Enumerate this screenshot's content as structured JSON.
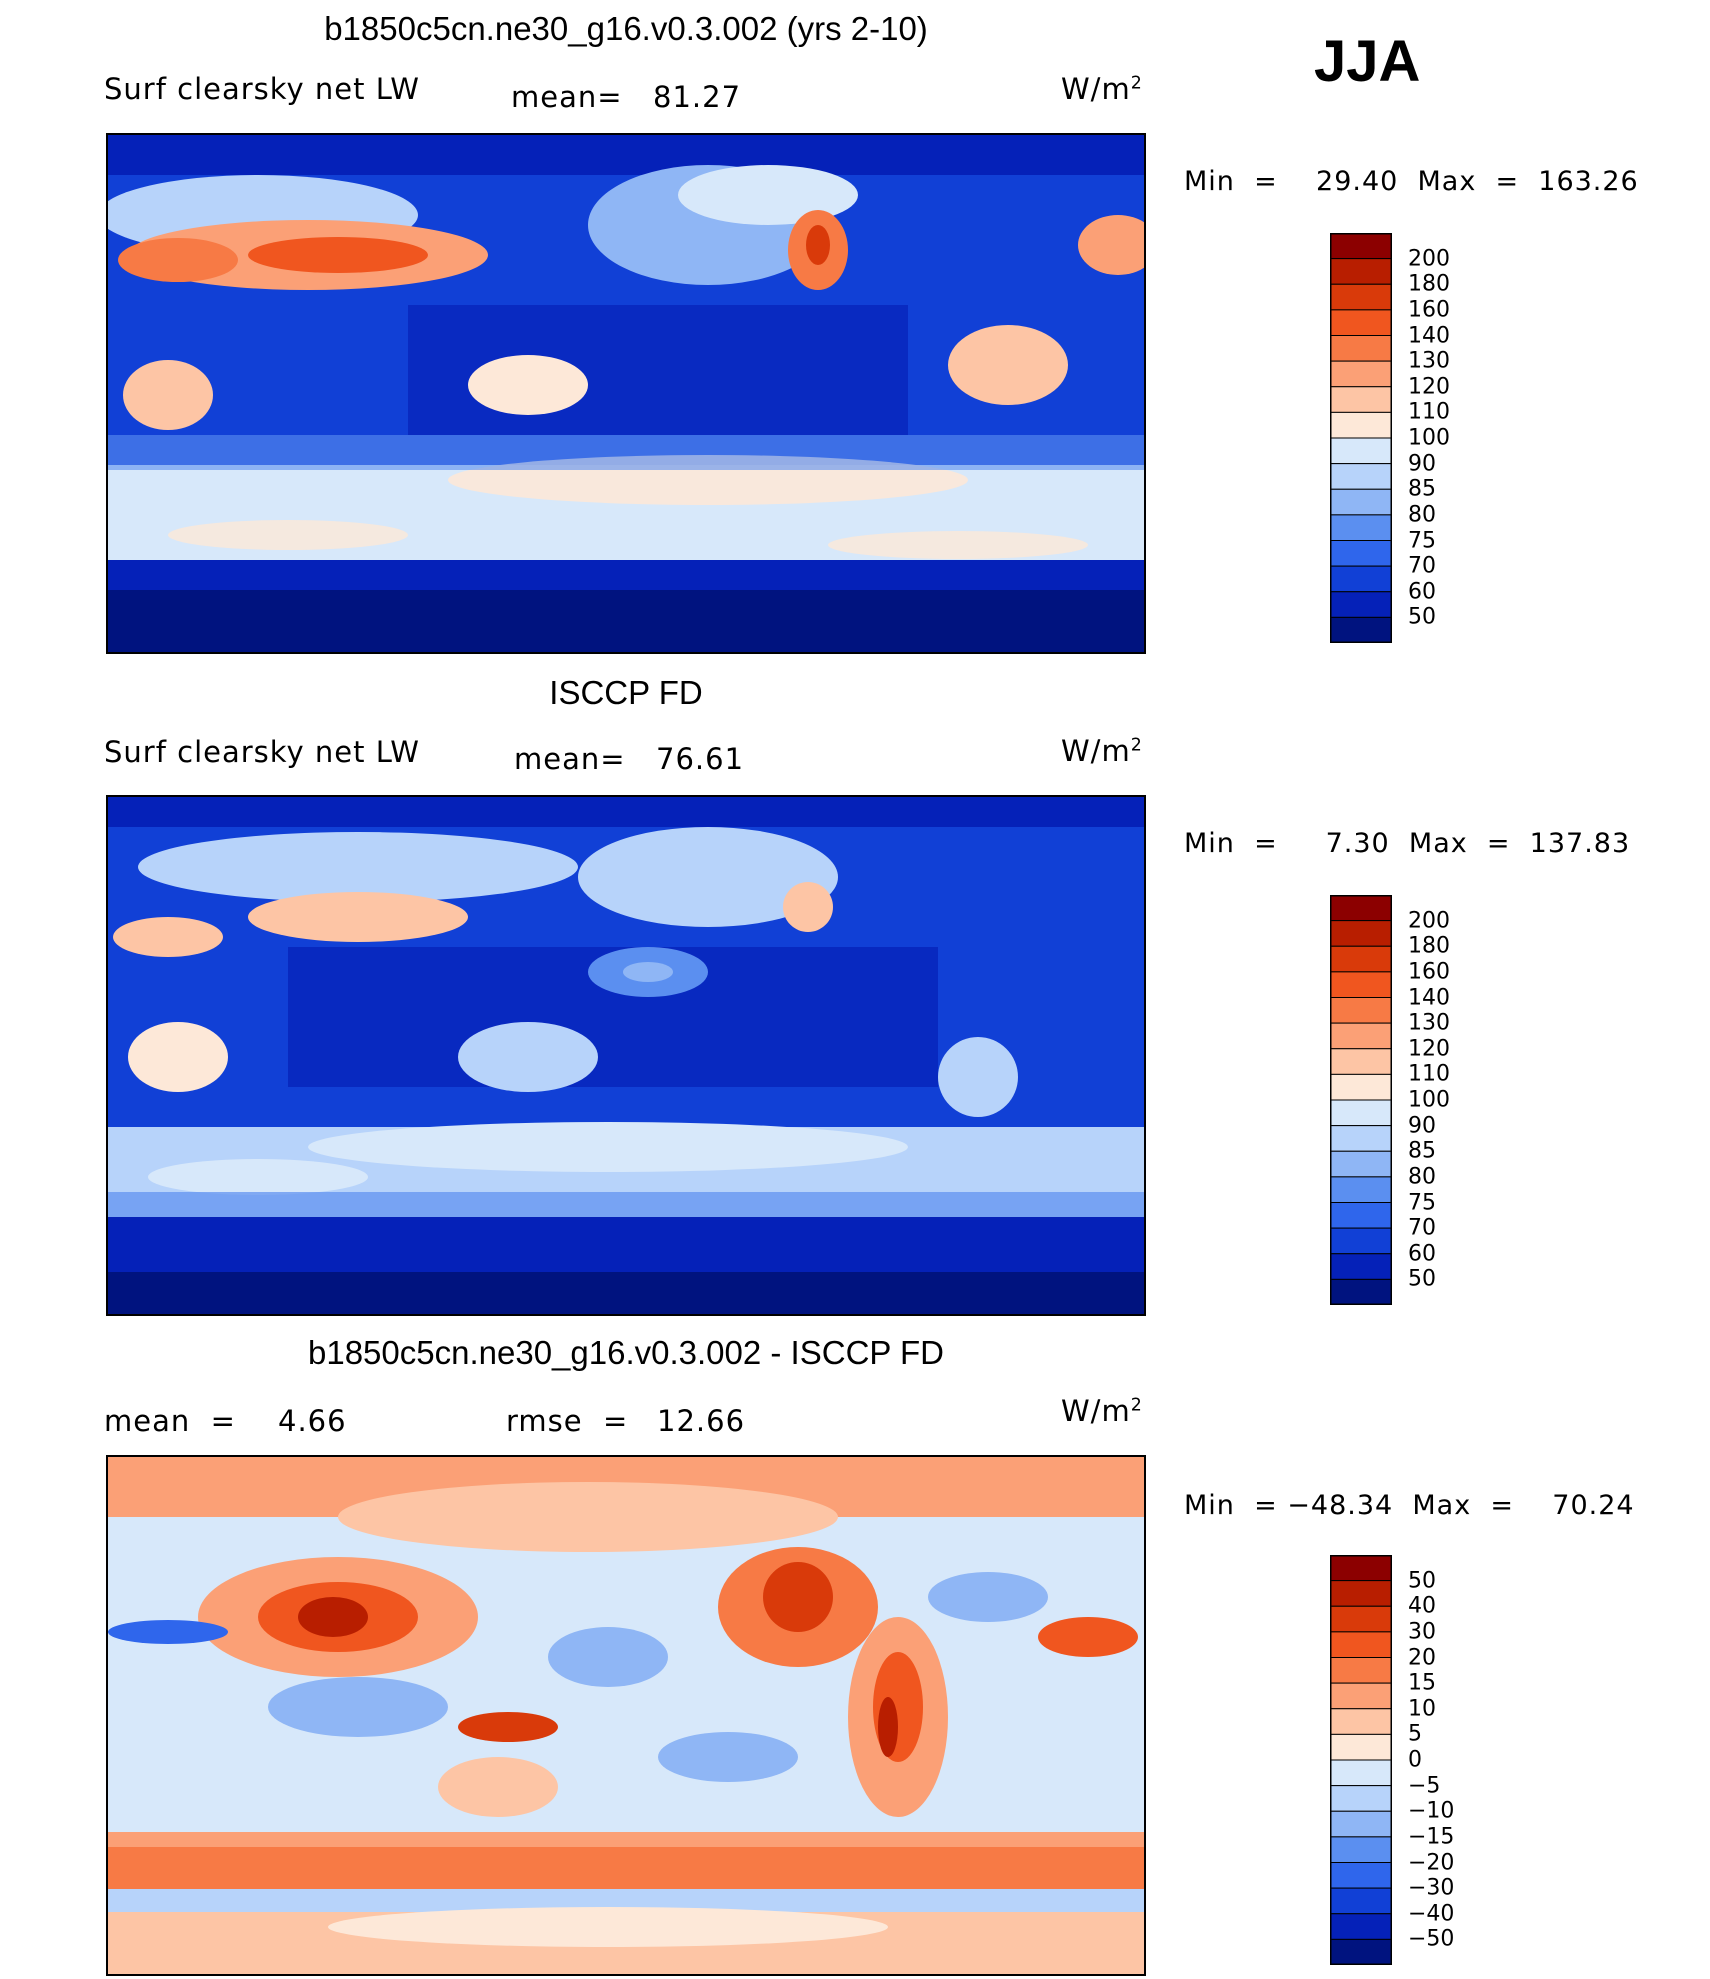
{
  "season": "JJA",
  "unit_base": "W/m",
  "unit_exp": "2",
  "panels": [
    {
      "title": "b1850c5cn.ne30_g16.v0.3.002 (yrs 2-10)",
      "variable": "Surf  clearsky  net  LW",
      "stat1_label": "mean=",
      "stat1_value": "81.27",
      "minmax": "Min  =    29.40  Max  =  163.26"
    },
    {
      "title": "ISCCP FD",
      "variable": "Surf  clearsky  net  LW",
      "stat1_label": "mean=",
      "stat1_value": "76.61",
      "minmax": "Min  =     7.30  Max  =  137.83"
    },
    {
      "title": "b1850c5cn.ne30_g16.v0.3.002 - ISCCP FD",
      "stat1_label": "mean  =",
      "stat1_value": "4.66",
      "stat2_label": "rmse  =",
      "stat2_value": "12.66",
      "minmax": "Min  = −48.34  Max  =    70.24"
    }
  ],
  "chart_data": [
    {
      "type": "heatmap",
      "title": "b1850c5cn.ne30_g16.v0.3.002 (yrs 2-10)",
      "variable": "Surf clearsky net LW",
      "unit": "W/m2",
      "mean": 81.27,
      "min": 29.4,
      "max": 163.26,
      "colorbar_levels": [
        "200",
        "180",
        "160",
        "140",
        "130",
        "120",
        "110",
        "100",
        "90",
        "85",
        "80",
        "75",
        "70",
        "60",
        "50"
      ],
      "colors": [
        "#8c0000",
        "#b81e00",
        "#d93a0a",
        "#f0561f",
        "#f77a45",
        "#fba076",
        "#fdc5a5",
        "#fde8d8",
        "#d7e8fa",
        "#b7d3fa",
        "#8fb6f5",
        "#5b8ff0",
        "#2f66ec",
        "#1140d6",
        "#0521b8",
        "#00137f"
      ]
    },
    {
      "type": "heatmap",
      "title": "ISCCP FD",
      "variable": "Surf clearsky net LW",
      "unit": "W/m2",
      "mean": 76.61,
      "min": 7.3,
      "max": 137.83,
      "colorbar_levels": [
        "200",
        "180",
        "160",
        "140",
        "130",
        "120",
        "110",
        "100",
        "90",
        "85",
        "80",
        "75",
        "70",
        "60",
        "50"
      ],
      "colors": [
        "#8c0000",
        "#b81e00",
        "#d93a0a",
        "#f0561f",
        "#f77a45",
        "#fba076",
        "#fdc5a5",
        "#fde8d8",
        "#d7e8fa",
        "#b7d3fa",
        "#8fb6f5",
        "#5b8ff0",
        "#2f66ec",
        "#1140d6",
        "#0521b8",
        "#00137f"
      ]
    },
    {
      "type": "heatmap",
      "title": "b1850c5cn.ne30_g16.v0.3.002 - ISCCP FD",
      "unit": "W/m2",
      "mean": 4.66,
      "rmse": 12.66,
      "min": -48.34,
      "max": 70.24,
      "colorbar_levels": [
        "50",
        "40",
        "30",
        "20",
        "15",
        "10",
        "5",
        "0",
        "−5",
        "−10",
        "−15",
        "−20",
        "−30",
        "−40",
        "−50"
      ],
      "colors": [
        "#8c0000",
        "#b81e00",
        "#d93a0a",
        "#f0561f",
        "#f77a45",
        "#fba076",
        "#fdc5a5",
        "#fde8d8",
        "#d7e8fa",
        "#b7d3fa",
        "#8fb6f5",
        "#5b8ff0",
        "#2f66ec",
        "#1140d6",
        "#0521b8",
        "#00137f"
      ]
    }
  ]
}
